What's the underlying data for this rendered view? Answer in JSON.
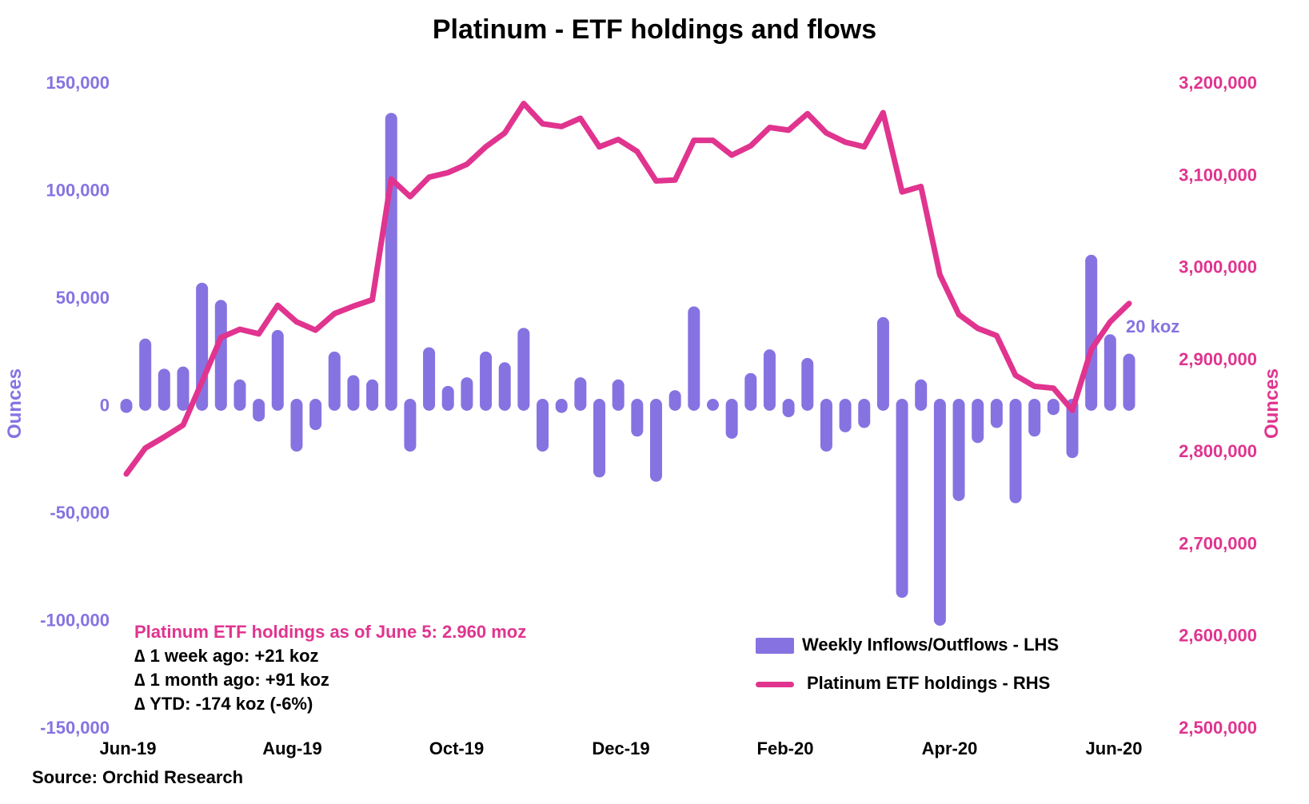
{
  "title": "Platinum - ETF holdings and flows",
  "source": "Source: Orchid Research",
  "annotation": {
    "headline": "Platinum ETF holdings as of June 5: 2.960 moz",
    "lines": [
      "∆ 1 week ago: +21 koz",
      "∆ 1 month ago: +91 koz",
      "∆ YTD: -174 koz (-6%)"
    ]
  },
  "callout": "20 koz",
  "colors": {
    "bars": "#8673e1",
    "line": "#e0348f",
    "left_axis": "#8673e1",
    "right_axis": "#e0348f"
  },
  "chart_data": {
    "type": "bar",
    "title": "Platinum - ETF holdings and flows",
    "x_tick_labels": [
      "Jun-19",
      "Aug-19",
      "Oct-19",
      "Dec-19",
      "Feb-20",
      "Apr-20",
      "Jun-20"
    ],
    "left_axis": {
      "label": "Ounces",
      "ylim": [
        -150000,
        150000
      ],
      "ticks": [
        150000,
        100000,
        50000,
        0,
        -50000,
        -100000,
        -150000
      ],
      "tick_labels": [
        "150,000",
        "100,000",
        "50,000",
        "0",
        "-50,000",
        "-100,000",
        "-150,000"
      ]
    },
    "right_axis": {
      "label": "Ounces",
      "ylim": [
        2500000,
        3200000
      ],
      "ticks": [
        3200000,
        3100000,
        3000000,
        2900000,
        2800000,
        2700000,
        2600000,
        2500000
      ],
      "tick_labels": [
        "3,200,000",
        "3,100,000",
        "3,000,000",
        "2,900,000",
        "2,800,000",
        "2,700,000",
        "2,600,000",
        "2,500,000"
      ]
    },
    "grid": false,
    "legend": "bottom-right",
    "series": [
      {
        "name": "Weekly Inflows/Outflows - LHS",
        "type": "bar",
        "axis": "left",
        "values": [
          -1000,
          28000,
          14000,
          15000,
          54000,
          46000,
          9000,
          -5000,
          32000,
          -19000,
          -9000,
          22000,
          11000,
          9000,
          133000,
          -19000,
          24000,
          6000,
          10000,
          22000,
          17000,
          33000,
          -19000,
          -1000,
          10000,
          -31000,
          9000,
          -12000,
          -33000,
          4000,
          43000,
          0,
          -13000,
          12000,
          23000,
          -3000,
          19000,
          -19000,
          -10000,
          -8000,
          38000,
          -87000,
          9000,
          -100000,
          -42000,
          -15000,
          -8000,
          -43000,
          -12000,
          -2000,
          -22000,
          67000,
          30000,
          21000
        ]
      },
      {
        "name": "Platinum ETF holdings - RHS",
        "type": "line",
        "axis": "right",
        "values": [
          2775000,
          2803000,
          2815000,
          2828000,
          2875000,
          2923000,
          2932000,
          2927000,
          2958000,
          2940000,
          2931000,
          2949000,
          2957000,
          2964000,
          3095000,
          3076000,
          3097000,
          3102000,
          3111000,
          3130000,
          3145000,
          3177000,
          3155000,
          3152000,
          3161000,
          3130000,
          3138000,
          3125000,
          3093000,
          3094000,
          3137000,
          3137000,
          3121000,
          3131000,
          3151000,
          3148000,
          3166000,
          3145000,
          3135000,
          3130000,
          3167000,
          3081000,
          3087000,
          2991000,
          2948000,
          2933000,
          2925000,
          2882000,
          2870000,
          2868000,
          2844000,
          2910000,
          2940000,
          2960000
        ]
      }
    ]
  },
  "legend_labels": [
    "Weekly Inflows/Outflows - LHS",
    "Platinum ETF holdings - RHS"
  ]
}
